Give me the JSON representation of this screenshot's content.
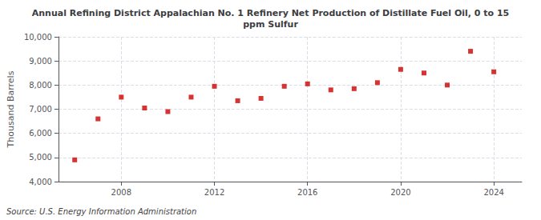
{
  "chart_data": {
    "type": "scatter",
    "title": "Annual Refining District Appalachian No. 1 Refinery Net Production of Distillate Fuel Oil, 0 to 15\nppm Sulfur",
    "ylabel": "Thousand Barrels",
    "source": "Source: U.S. Energy Information Administration",
    "x": [
      2006,
      2007,
      2008,
      2009,
      2010,
      2011,
      2012,
      2013,
      2014,
      2015,
      2016,
      2017,
      2018,
      2019,
      2020,
      2021,
      2022,
      2023,
      2024
    ],
    "values": [
      4900,
      6600,
      7500,
      7050,
      6900,
      7500,
      7950,
      7350,
      7450,
      7950,
      8050,
      7800,
      7850,
      8100,
      8650,
      8500,
      8000,
      9400,
      8550
    ],
    "color": "#cc0000",
    "marker": "square",
    "xlim": [
      2005.3,
      2025.2
    ],
    "xticks": [
      2008,
      2012,
      2016,
      2020,
      2024
    ],
    "ylim": [
      4000,
      10000
    ],
    "yticks": [
      {
        "value": 4000,
        "label": "4,000"
      },
      {
        "value": 5000,
        "label": "5,000"
      },
      {
        "value": 6000,
        "label": "6,000"
      },
      {
        "value": 7000,
        "label": "7,000"
      },
      {
        "value": 8000,
        "label": "8,000"
      },
      {
        "value": 9000,
        "label": "9,000"
      },
      {
        "value": 10000,
        "label": "10,000"
      }
    ],
    "grid": true
  }
}
